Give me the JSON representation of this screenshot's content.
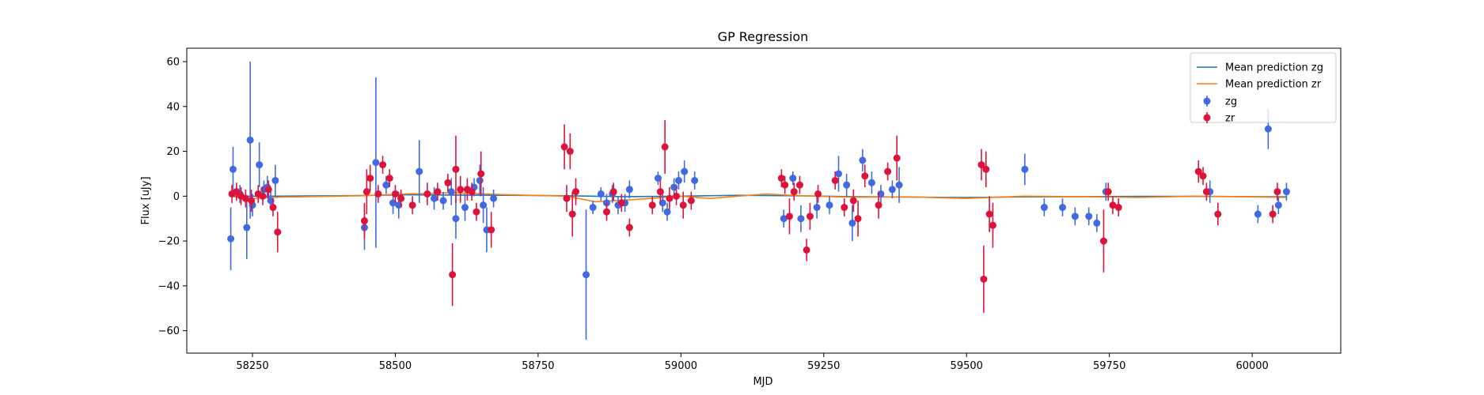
{
  "chart_data": {
    "type": "scatter",
    "title": "GP Regression",
    "xlabel": "MJD",
    "ylabel": "Flux [uJy]",
    "xlim": [
      58135,
      60155
    ],
    "ylim": [
      -70,
      66
    ],
    "xticks": [
      58250,
      58500,
      58750,
      59000,
      59250,
      59500,
      59750,
      60000
    ],
    "yticks": [
      -60,
      -40,
      -20,
      0,
      20,
      40,
      60
    ],
    "grid": false,
    "legend_position": "top-right",
    "lines": [
      {
        "name": "Mean prediction zg",
        "color": "#1f77b4",
        "x": [
          58212,
          58300,
          58440,
          58520,
          58600,
          58700,
          58800,
          58900,
          59000,
          59100,
          59200,
          59300,
          59400,
          59500,
          59600,
          59700,
          59800,
          59900,
          60000,
          60060
        ],
        "y": [
          0.0,
          0.0,
          0.3,
          0.6,
          0.5,
          0.4,
          0.2,
          -0.2,
          0.0,
          0.4,
          0.2,
          -0.2,
          -0.4,
          -0.6,
          -0.3,
          -0.2,
          -0.1,
          -0.1,
          -0.2,
          -0.3
        ]
      },
      {
        "name": "Mean prediction zr",
        "color": "#ff7f0e",
        "x": [
          58212,
          58240,
          58300,
          58440,
          58520,
          58600,
          58700,
          58800,
          58850,
          58920,
          59000,
          59050,
          59100,
          59150,
          59200,
          59300,
          59400,
          59500,
          59600,
          59700,
          59800,
          59900,
          60000,
          60060
        ],
        "y": [
          0.0,
          -1.2,
          -0.4,
          0.2,
          1.0,
          1.5,
          0.6,
          0.0,
          -2.5,
          -1.5,
          0.0,
          -1.0,
          0.0,
          1.0,
          0.3,
          -0.5,
          -0.3,
          -1.0,
          0.0,
          -0.2,
          -0.6,
          0.0,
          -0.3,
          -0.6
        ]
      }
    ],
    "series": [
      {
        "name": "zg",
        "color": "#4169e1",
        "x": [
          58212,
          58216,
          58228,
          58240,
          58246,
          58250,
          58262,
          58270,
          58276,
          58282,
          58290,
          58446,
          58466,
          58484,
          58496,
          58506,
          58542,
          58568,
          58584,
          58598,
          58606,
          58622,
          58638,
          58648,
          58654,
          58660,
          58672,
          58834,
          58846,
          58860,
          58870,
          58880,
          58890,
          58902,
          58910,
          58960,
          58968,
          58976,
          58988,
          58996,
          59006,
          59024,
          59180,
          59196,
          59210,
          59238,
          59260,
          59276,
          59290,
          59300,
          59318,
          59334,
          59350,
          59370,
          59382,
          59602,
          59636,
          59668,
          59690,
          59714,
          59728,
          59744,
          59926,
          60010,
          60028,
          60046,
          60060
        ],
        "y": [
          -19,
          12,
          1,
          -14,
          25,
          -4,
          14,
          3,
          4,
          -2,
          7,
          -14,
          15,
          5,
          -3,
          -4,
          11,
          -1,
          -2,
          2,
          -10,
          -5,
          4,
          7,
          -4,
          -15,
          -1,
          -35,
          -5,
          1,
          -3,
          1,
          -4,
          -3,
          3,
          8,
          -3,
          -7,
          4,
          7,
          11,
          7,
          -10,
          8,
          -10,
          -5,
          -4,
          10,
          5,
          -12,
          16,
          6,
          1,
          3,
          5,
          12,
          -5,
          -5,
          -9,
          -9,
          -12,
          2,
          2,
          -8,
          30,
          -4,
          2
        ],
        "err": [
          14,
          10,
          4,
          14,
          35,
          5,
          10,
          4,
          5,
          4,
          7,
          10,
          38,
          4,
          5,
          6,
          14,
          5,
          4,
          6,
          9,
          6,
          4,
          7,
          8,
          10,
          4,
          29,
          3,
          3,
          4,
          4,
          4,
          4,
          4,
          3,
          4,
          4,
          4,
          4,
          5,
          4,
          4,
          3,
          6,
          5,
          4,
          8,
          5,
          8,
          5,
          5,
          4,
          4,
          8,
          7,
          4,
          4,
          4,
          4,
          4,
          4,
          5,
          4,
          9,
          4,
          4
        ]
      },
      {
        "name": "zr",
        "color": "#dc143c",
        "x": [
          58214,
          58222,
          58230,
          58238,
          58248,
          58260,
          58268,
          58278,
          58286,
          58294,
          58446,
          58450,
          58456,
          58470,
          58478,
          58490,
          58500,
          58510,
          58530,
          58556,
          58574,
          58592,
          58600,
          58606,
          58614,
          58626,
          58634,
          58642,
          58650,
          58668,
          58796,
          58800,
          58806,
          58810,
          58816,
          58870,
          58882,
          58896,
          58910,
          58950,
          58964,
          58972,
          58980,
          58992,
          59004,
          59018,
          59176,
          59182,
          59190,
          59198,
          59208,
          59220,
          59226,
          59240,
          59270,
          59286,
          59302,
          59310,
          59322,
          59346,
          59362,
          59378,
          59526,
          59530,
          59534,
          59540,
          59546,
          59740,
          59748,
          59756,
          59766,
          59906,
          59914,
          59920,
          59940,
          60036,
          60044
        ],
        "y": [
          1,
          2,
          0,
          -1,
          -2,
          1,
          0,
          3,
          -5,
          -16,
          -11,
          2,
          8,
          1,
          14,
          8,
          1,
          -1,
          -4,
          1,
          2,
          6,
          -35,
          12,
          3,
          3,
          2,
          -7,
          10,
          -15,
          22,
          -1,
          20,
          -8,
          2,
          -7,
          2,
          -3,
          -14,
          -4,
          2,
          22,
          -1,
          0,
          -4,
          -2,
          8,
          5,
          -9,
          2,
          5,
          -24,
          -9,
          1,
          7,
          -5,
          -2,
          -10,
          9,
          -4,
          11,
          17,
          14,
          -37,
          12,
          -8,
          -13,
          -20,
          2,
          -4,
          -5,
          11,
          9,
          2,
          -8,
          -8,
          2
        ],
        "err": [
          4,
          4,
          4,
          4,
          5,
          4,
          4,
          4,
          4,
          9,
          8,
          10,
          6,
          4,
          4,
          4,
          4,
          4,
          4,
          5,
          4,
          4,
          14,
          15,
          6,
          5,
          4,
          4,
          10,
          8,
          10,
          6,
          8,
          10,
          6,
          4,
          4,
          4,
          4,
          4,
          5,
          12,
          5,
          4,
          6,
          4,
          4,
          4,
          8,
          4,
          4,
          5,
          6,
          4,
          4,
          4,
          5,
          8,
          5,
          6,
          4,
          10,
          7,
          15,
          8,
          8,
          10,
          14,
          4,
          4,
          4,
          5,
          4,
          4,
          5,
          4,
          4
        ]
      }
    ]
  }
}
